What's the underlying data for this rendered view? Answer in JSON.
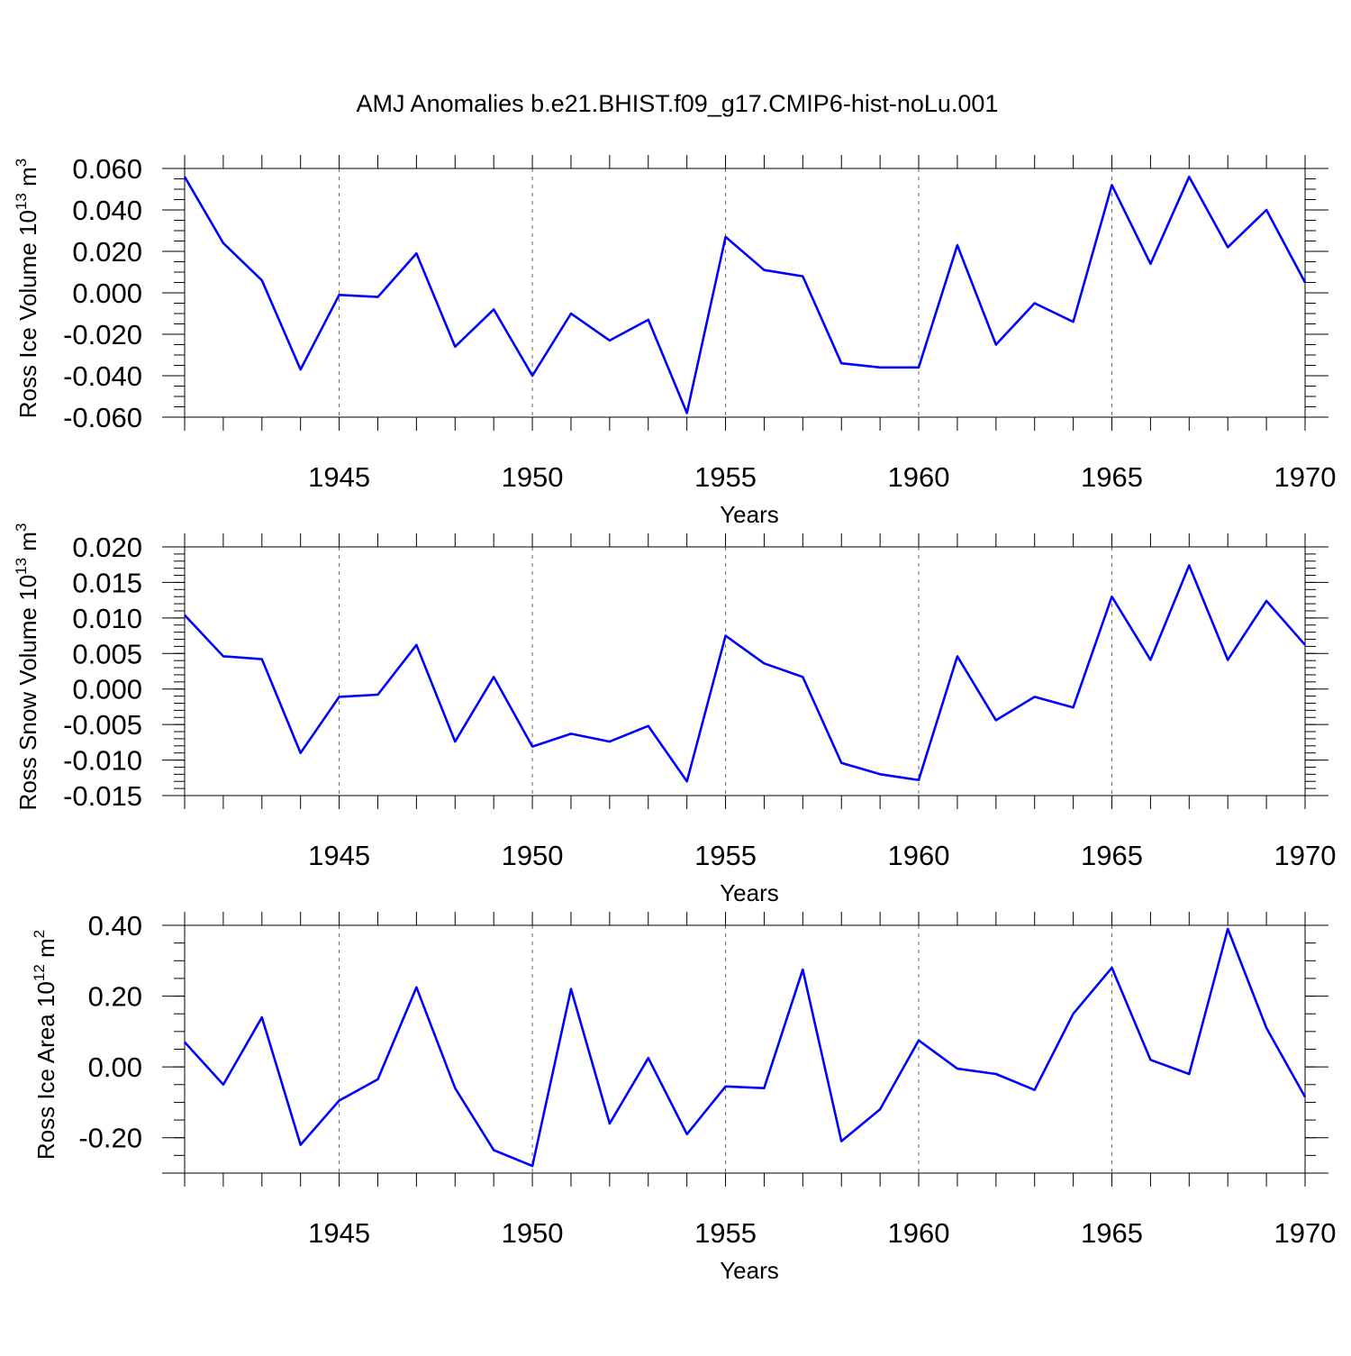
{
  "title": "AMJ Anomalies b.e21.BHIST.f09_g17.CMIP6-hist-noLu.001",
  "colors": {
    "line": "#0000ff",
    "axis": "#000000",
    "grid": "#666666"
  },
  "chart_data": [
    {
      "type": "line",
      "ylabel_main": "Ross Ice Volume 10",
      "ylabel_exp": "13",
      "ylabel_unit": " m",
      "ylabel_unit_exp": "3",
      "xlabel": "Years",
      "xlim": [
        1941,
        1970
      ],
      "ylim": [
        -0.06,
        0.06
      ],
      "yticks": [
        -0.06,
        -0.04,
        -0.02,
        0.0,
        0.02,
        0.04,
        0.06
      ],
      "ytick_labels": [
        "-0.060",
        "-0.040",
        "-0.020",
        "0.000",
        "0.020",
        "0.040",
        "0.060"
      ],
      "yminor": 0.005,
      "xticks": [
        1945,
        1950,
        1955,
        1960,
        1965,
        1970
      ],
      "xtick_labels": [
        "1945",
        "1950",
        "1955",
        "1960",
        "1965",
        "1970"
      ],
      "grid": "vertical-dashed",
      "series": [
        {
          "x": [
            1941,
            1942,
            1943,
            1944,
            1945,
            1946,
            1947,
            1948,
            1949,
            1950,
            1951,
            1952,
            1953,
            1954,
            1955,
            1956,
            1957,
            1958,
            1959,
            1960,
            1961,
            1962,
            1963,
            1964,
            1965,
            1966,
            1967,
            1968,
            1969,
            1970
          ],
          "values": [
            0.056,
            0.024,
            0.006,
            -0.037,
            -0.001,
            -0.002,
            0.019,
            -0.026,
            -0.008,
            -0.04,
            -0.01,
            -0.023,
            -0.013,
            -0.058,
            0.027,
            0.011,
            0.008,
            -0.034,
            -0.036,
            -0.036,
            0.023,
            -0.025,
            -0.005,
            -0.014,
            0.052,
            0.014,
            0.056,
            0.022,
            0.04,
            0.005
          ]
        }
      ]
    },
    {
      "type": "line",
      "ylabel_main": "Ross Snow Volume 10",
      "ylabel_exp": "13",
      "ylabel_unit": " m",
      "ylabel_unit_exp": "3",
      "xlabel": "Years",
      "xlim": [
        1941,
        1970
      ],
      "ylim": [
        -0.015,
        0.02
      ],
      "yticks": [
        -0.015,
        -0.01,
        -0.005,
        0.0,
        0.005,
        0.01,
        0.015,
        0.02
      ],
      "ytick_labels": [
        "-0.015",
        "-0.010",
        "-0.005",
        "0.000",
        "0.005",
        "0.010",
        "0.015",
        "0.020"
      ],
      "yminor": 0.001,
      "xticks": [
        1945,
        1950,
        1955,
        1960,
        1965,
        1970
      ],
      "xtick_labels": [
        "1945",
        "1950",
        "1955",
        "1960",
        "1965",
        "1970"
      ],
      "grid": "vertical-dashed",
      "series": [
        {
          "x": [
            1941,
            1942,
            1943,
            1944,
            1945,
            1946,
            1947,
            1948,
            1949,
            1950,
            1951,
            1952,
            1953,
            1954,
            1955,
            1956,
            1957,
            1958,
            1959,
            1960,
            1961,
            1962,
            1963,
            1964,
            1965,
            1966,
            1967,
            1968,
            1969,
            1970
          ],
          "values": [
            0.0104,
            0.0046,
            0.0042,
            -0.009,
            -0.0011,
            -0.0008,
            0.0062,
            -0.0074,
            0.0017,
            -0.0081,
            -0.0063,
            -0.0074,
            -0.0052,
            -0.013,
            0.0075,
            0.0036,
            0.0017,
            -0.0104,
            -0.012,
            -0.0128,
            0.0046,
            -0.0044,
            -0.0011,
            -0.0026,
            0.013,
            0.0041,
            0.0174,
            0.0041,
            0.0124,
            0.0062
          ]
        }
      ]
    },
    {
      "type": "line",
      "ylabel_main": "Ross Ice Area 10",
      "ylabel_exp": "12",
      "ylabel_unit": " m",
      "ylabel_unit_exp": "2",
      "xlabel": "Years",
      "xlim": [
        1941,
        1970
      ],
      "ylim": [
        -0.3,
        0.4
      ],
      "yticks": [
        -0.2,
        0.0,
        0.2,
        0.4
      ],
      "ytick_labels": [
        "-0.20",
        "0.00",
        "0.20",
        "0.40"
      ],
      "yminor": 0.05,
      "xticks": [
        1945,
        1950,
        1955,
        1960,
        1965,
        1970
      ],
      "xtick_labels": [
        "1945",
        "1950",
        "1955",
        "1960",
        "1965",
        "1970"
      ],
      "grid": "vertical-dashed",
      "series": [
        {
          "x": [
            1941,
            1942,
            1943,
            1944,
            1945,
            1946,
            1947,
            1948,
            1949,
            1950,
            1951,
            1952,
            1953,
            1954,
            1955,
            1956,
            1957,
            1958,
            1959,
            1960,
            1961,
            1962,
            1963,
            1964,
            1965,
            1966,
            1967,
            1968,
            1969,
            1970
          ],
          "values": [
            0.07,
            -0.05,
            0.14,
            -0.22,
            -0.095,
            -0.035,
            0.225,
            -0.06,
            -0.235,
            -0.28,
            0.22,
            -0.16,
            0.025,
            -0.19,
            -0.055,
            -0.06,
            0.275,
            -0.21,
            -0.12,
            0.075,
            -0.005,
            -0.02,
            -0.065,
            0.15,
            0.28,
            0.02,
            -0.02,
            0.39,
            0.11,
            -0.085
          ]
        }
      ]
    }
  ]
}
